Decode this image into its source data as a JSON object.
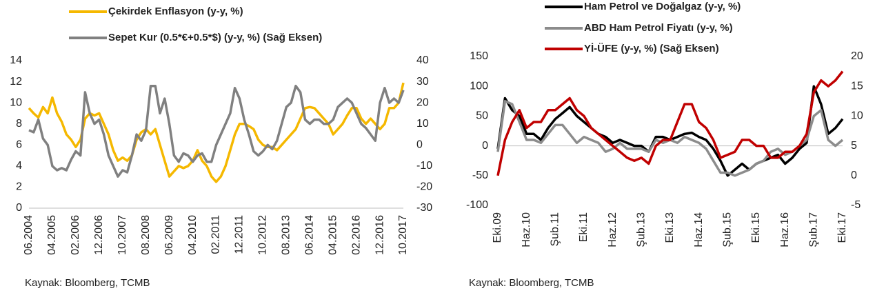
{
  "chart_data": [
    {
      "type": "line",
      "categories": [
        "06.2004",
        null,
        null,
        null,
        null,
        "04.2005",
        null,
        null,
        null,
        null,
        "02.2006",
        null,
        null,
        null,
        null,
        "12.2006",
        null,
        null,
        null,
        null,
        "10.2007",
        null,
        null,
        null,
        null,
        "08.2008",
        null,
        null,
        null,
        null,
        "06.2009",
        null,
        null,
        null,
        null,
        "04.2010",
        null,
        null,
        null,
        null,
        "02.2011",
        null,
        null,
        null,
        null,
        "12.2011",
        null,
        null,
        null,
        null,
        "10.2012",
        null,
        null,
        null,
        null,
        "08.2013",
        null,
        null,
        null,
        null,
        "06.2014",
        null,
        null,
        null,
        null,
        "04.2015",
        null,
        null,
        null,
        null,
        "02.2016",
        null,
        null,
        null,
        null,
        "12.2016",
        null,
        null,
        null,
        null,
        "10.2017"
      ],
      "series": [
        {
          "name": "Çekirdek Enflasyon (y-y, %)",
          "color": "#f5b800",
          "values": [
            9.5,
            9.0,
            8.6,
            9.6,
            9.0,
            10.5,
            9.0,
            8.2,
            7.0,
            6.5,
            5.8,
            6.5,
            8.5,
            9.0,
            8.8,
            9.0,
            8.0,
            7.0,
            5.5,
            4.5,
            4.8,
            4.5,
            5.0,
            6.5,
            7.2,
            7.5,
            7.0,
            7.5,
            6.0,
            4.5,
            3.0,
            3.5,
            4.0,
            3.8,
            4.0,
            4.5,
            5.5,
            4.5,
            4.0,
            3.0,
            2.5,
            3.0,
            4.0,
            5.5,
            7.0,
            8.0,
            8.0,
            7.8,
            7.5,
            6.5,
            6.0,
            5.8,
            5.8,
            5.5,
            6.0,
            6.5,
            7.0,
            7.5,
            8.5,
            9.5,
            9.6,
            9.5,
            9.0,
            8.5,
            8.0,
            7.0,
            7.5,
            8.0,
            8.8,
            9.5,
            9.5,
            8.5,
            8.0,
            8.5,
            8.0,
            7.5,
            8.0,
            9.5,
            9.5,
            10.0,
            11.9
          ]
        },
        {
          "name": "Sepet Kur (0.5*€+0.5*$) (y-y, %) (Sağ Eksen)",
          "color": "#808080",
          "axis": "y2",
          "values": [
            7,
            6,
            12,
            3,
            0,
            -10,
            -12,
            -11,
            -12,
            -7,
            -3,
            -5,
            25,
            15,
            10,
            12,
            5,
            -5,
            -10,
            -15,
            -12,
            -13,
            -5,
            5,
            2,
            7,
            28,
            28,
            15,
            22,
            10,
            -5,
            -8,
            -4,
            -5,
            -8,
            -5,
            -4,
            -8,
            -8,
            0,
            5,
            10,
            15,
            27,
            22,
            12,
            5,
            -3,
            -5,
            -3,
            0,
            -2,
            2,
            10,
            18,
            20,
            28,
            25,
            12,
            10,
            12,
            12,
            10,
            10,
            12,
            18,
            20,
            22,
            20,
            15,
            10,
            8,
            5,
            2,
            20,
            27,
            20,
            22,
            20,
            26
          ]
        }
      ],
      "ylim": [
        0,
        14
      ],
      "yticks": [
        0,
        2,
        4,
        6,
        8,
        10,
        12,
        14
      ],
      "y2lim": [
        -30,
        40
      ],
      "y2ticks": [
        -30,
        -20,
        -10,
        0,
        10,
        20,
        30,
        40
      ],
      "source": "Kaynak: Bloomberg, TCMB"
    },
    {
      "type": "line",
      "categories": [
        "Eki.09",
        null,
        null,
        null,
        "Haz.10",
        null,
        null,
        null,
        "Şub.11",
        null,
        null,
        null,
        "Eki.11",
        null,
        null,
        null,
        "Haz.12",
        null,
        null,
        null,
        "Şub.13",
        null,
        null,
        null,
        "Eki.13",
        null,
        null,
        null,
        "Haz.14",
        null,
        null,
        null,
        "Şub.15",
        null,
        null,
        null,
        "Eki.15",
        null,
        null,
        null,
        "Haz.16",
        null,
        null,
        null,
        "Şub.17",
        null,
        null,
        null,
        "Eki.17"
      ],
      "series": [
        {
          "name": "Ham Petrol ve Doğalgaz (y-y, %)",
          "color": "#000000",
          "values": [
            -5,
            80,
            60,
            50,
            20,
            20,
            10,
            30,
            45,
            55,
            65,
            50,
            40,
            30,
            20,
            15,
            5,
            10,
            5,
            0,
            0,
            -10,
            15,
            15,
            10,
            15,
            20,
            22,
            15,
            10,
            -5,
            -25,
            -50,
            -40,
            -30,
            -40,
            -30,
            -25,
            -20,
            -15,
            -30,
            -20,
            -5,
            5,
            100,
            70,
            20,
            30,
            45
          ]
        },
        {
          "name": "ABD Ham Petrol Fiyatı (y-y, %)",
          "color": "#8c8c8c",
          "values": [
            -10,
            75,
            70,
            40,
            10,
            10,
            5,
            20,
            35,
            35,
            20,
            5,
            15,
            10,
            5,
            -10,
            -5,
            5,
            -5,
            -5,
            -5,
            -10,
            10,
            5,
            10,
            5,
            15,
            10,
            5,
            -5,
            -25,
            -45,
            -45,
            -50,
            -45,
            -40,
            -30,
            -25,
            -10,
            -5,
            -15,
            -10,
            0,
            10,
            50,
            60,
            10,
            0,
            10
          ]
        },
        {
          "name": "Yİ-ÜFE (y-y, %) (Sağ Eksen)",
          "color": "#c00000",
          "axis": "y2",
          "values": [
            0,
            6,
            9,
            11,
            8,
            9,
            9,
            11,
            11,
            12,
            13,
            11,
            10,
            8,
            7,
            6,
            5,
            4,
            3,
            2.5,
            3,
            2,
            5,
            6,
            6,
            9,
            12,
            12,
            9,
            8,
            6,
            3,
            3.5,
            4,
            6,
            6,
            5,
            5,
            3,
            3,
            4,
            4,
            5,
            7,
            14,
            16,
            15,
            16,
            17.5
          ]
        }
      ],
      "ylim": [
        -100,
        150
      ],
      "yticks": [
        -100,
        -50,
        0,
        50,
        100,
        150
      ],
      "y2lim": [
        -5,
        20
      ],
      "y2ticks": [
        -5,
        0,
        5,
        10,
        15,
        20
      ],
      "source": "Kaynak: Bloomberg, TCMB"
    }
  ]
}
